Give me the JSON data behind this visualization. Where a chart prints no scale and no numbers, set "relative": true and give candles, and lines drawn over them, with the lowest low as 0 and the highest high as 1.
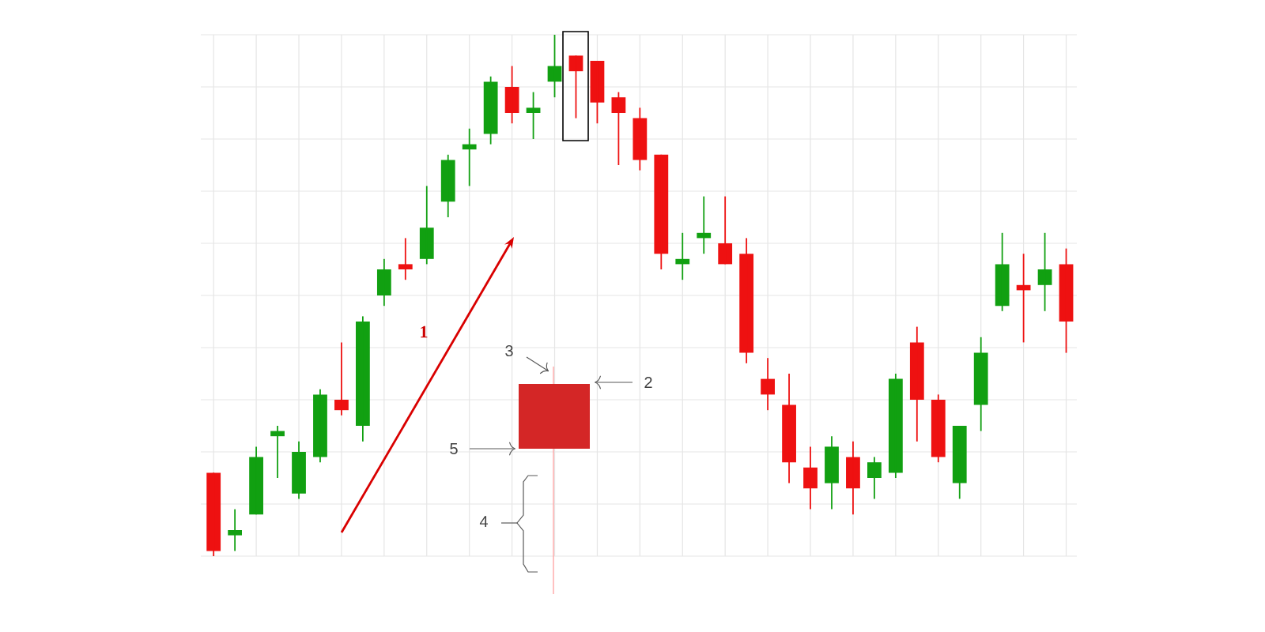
{
  "chart_data": {
    "type": "candlestick",
    "relative": true,
    "grid": true,
    "categories": [
      null,
      null,
      null,
      null,
      null,
      null,
      null,
      null,
      null,
      null,
      null,
      null,
      null,
      null,
      null,
      null,
      null,
      null,
      null,
      null,
      null,
      null,
      null,
      null,
      null,
      null,
      null,
      null,
      null,
      null,
      null,
      null,
      null,
      null,
      null,
      null,
      null,
      null,
      null,
      null,
      null
    ],
    "ohlc": [
      [
        0.16,
        0.16,
        0,
        0.01
      ],
      [
        0.04,
        0.09,
        0.01,
        0.05
      ],
      [
        0.08,
        0.21,
        0.08,
        0.19
      ],
      [
        0.23,
        0.25,
        0.15,
        0.24
      ],
      [
        0.12,
        0.22,
        0.11,
        0.2
      ],
      [
        0.19,
        0.32,
        0.18,
        0.31
      ],
      [
        0.3,
        0.41,
        0.27,
        0.28
      ],
      [
        0.25,
        0.46,
        0.22,
        0.45
      ],
      [
        0.5,
        0.57,
        0.48,
        0.55
      ],
      [
        0.56,
        0.61,
        0.53,
        0.55
      ],
      [
        0.57,
        0.71,
        0.56,
        0.63
      ],
      [
        0.68,
        0.77,
        0.65,
        0.76
      ],
      [
        0.78,
        0.82,
        0.71,
        0.79
      ],
      [
        0.81,
        0.92,
        0.79,
        0.91
      ],
      [
        0.9,
        0.94,
        0.83,
        0.85
      ],
      [
        0.85,
        0.89,
        0.8,
        0.86
      ],
      [
        0.91,
        1,
        0.88,
        0.94
      ],
      [
        0.96,
        0.96,
        0.84,
        0.93
      ],
      [
        0.95,
        0.95,
        0.83,
        0.87
      ],
      [
        0.88,
        0.89,
        0.75,
        0.85
      ],
      [
        0.84,
        0.86,
        0.74,
        0.76
      ],
      [
        0.77,
        0.77,
        0.55,
        0.58
      ],
      [
        0.56,
        0.62,
        0.53,
        0.57
      ],
      [
        0.61,
        0.69,
        0.58,
        0.62
      ],
      [
        0.6,
        0.69,
        0.56,
        0.56
      ],
      [
        0.58,
        0.61,
        0.37,
        0.39
      ],
      [
        0.34,
        0.38,
        0.28,
        0.31
      ],
      [
        0.29,
        0.35,
        0.14,
        0.18
      ],
      [
        0.17,
        0.21,
        0.09,
        0.13
      ],
      [
        0.14,
        0.23,
        0.09,
        0.21
      ],
      [
        0.19,
        0.22,
        0.08,
        0.13
      ],
      [
        0.15,
        0.19,
        0.11,
        0.18
      ],
      [
        0.16,
        0.35,
        0.15,
        0.34
      ],
      [
        0.41,
        0.44,
        0.22,
        0.3
      ],
      [
        0.3,
        0.31,
        0.18,
        0.19
      ],
      [
        0.14,
        0.25,
        0.11,
        0.25
      ],
      [
        0.29,
        0.42,
        0.24,
        0.39
      ],
      [
        0.48,
        0.62,
        0.47,
        0.56
      ],
      [
        0.52,
        0.58,
        0.41,
        0.51
      ],
      [
        0.52,
        0.62,
        0.47,
        0.55
      ],
      [
        0.56,
        0.59,
        0.39,
        0.45
      ]
    ],
    "colors": [
      "#ee1111",
      "#11a011",
      "#11a011",
      "#11a011",
      "#11a011",
      "#11a011",
      "#ee1111",
      "#11a011",
      "#11a011",
      "#ee1111",
      "#11a011",
      "#11a011",
      "#11a011",
      "#11a011",
      "#ee1111",
      "#11a011",
      "#11a011",
      "#ee1111",
      "#ee1111",
      "#ee1111",
      "#ee1111",
      "#ee1111",
      "#11a011",
      "#11a011",
      "#ee1111",
      "#ee1111",
      "#ee1111",
      "#ee1111",
      "#ee1111",
      "#11a011",
      "#ee1111",
      "#11a011",
      "#11a011",
      "#ee1111",
      "#ee1111",
      "#11a011",
      "#11a011",
      "#11a011",
      "#ee1111",
      "#11a011",
      "#ee1111"
    ],
    "annotations": [
      "1",
      "2",
      "3",
      "4",
      "5"
    ]
  }
}
